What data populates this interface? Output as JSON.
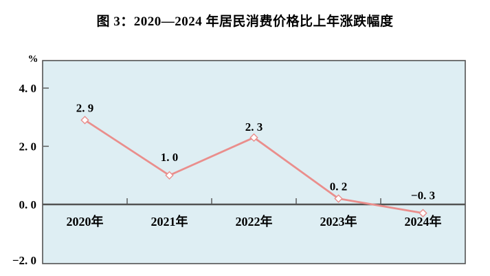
{
  "title": "图 3：2020—2024 年居民消费价格比上年涨跌幅度",
  "chart_data": {
    "type": "line",
    "title": "图 3：2020—2024 年居民消费价格比上年涨跌幅度",
    "categories": [
      "2020年",
      "2021年",
      "2022年",
      "2023年",
      "2024年"
    ],
    "values": [
      2.9,
      1.0,
      2.3,
      0.2,
      -0.3
    ],
    "point_labels": [
      "2. 9",
      "1. 0",
      "2. 3",
      "0. 2",
      "−0. 3"
    ],
    "unit_label": "%",
    "y_ticks": [
      {
        "label": "4. 0",
        "value": 4.0
      },
      {
        "label": "2. 0",
        "value": 2.0
      },
      {
        "label": "0. 0",
        "value": 0.0
      },
      {
        "label": "−2. 0",
        "value": -2.0
      }
    ],
    "ylim": [
      -2.0,
      4.95
    ],
    "grid": false,
    "legend": "none",
    "marker": "diamond",
    "colors": {
      "line": "#EA8E8C",
      "marker_fill": "#FFFFFF",
      "plot_bg": "#DEEEF3",
      "axis": "#525252",
      "text": "#000000",
      "page_bg": "#FFFFFF"
    }
  }
}
